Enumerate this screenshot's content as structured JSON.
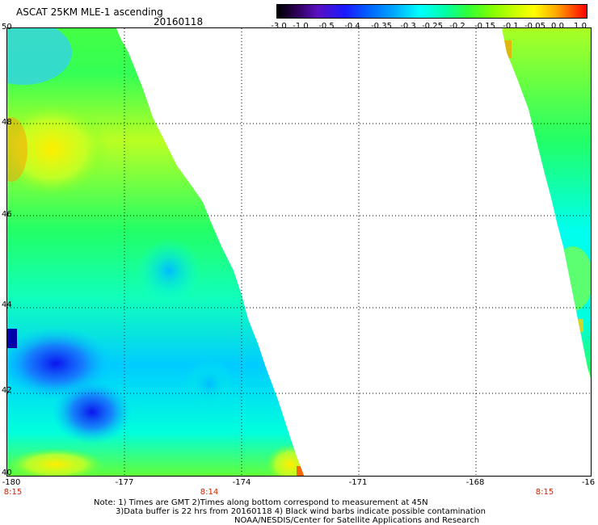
{
  "header": {
    "title": "ASCAT 25KM MLE-1 ascending",
    "date": "20160118"
  },
  "colorbar": {
    "ticks": [
      "-3.0",
      "-1.0",
      "-0.5",
      "-0.4",
      "-0.35",
      "-0.3",
      "-0.25",
      "-0.2",
      "-0.15",
      "-0.1",
      "-0.05",
      "0.0",
      "1.0"
    ],
    "colors": [
      "#000000",
      "#1a1aff",
      "#00ffff",
      "#33ff33",
      "#ffff00",
      "#ff0000"
    ]
  },
  "map": {
    "lat_labels": [
      "50",
      "48",
      "46",
      "44",
      "42",
      "40"
    ],
    "lon_labels": [
      "-180",
      "-177",
      "-174",
      "-171",
      "-168",
      "-16"
    ],
    "time_labels": [
      "8:15",
      "8:14",
      "8:15"
    ]
  },
  "notes": {
    "line1": "Note: 1) Times are GMT 2)Times along bottom correspond to measurement at 45N",
    "line2": "3)Data buffer is 22 hrs from 20160118 4) Black wind barbs indicate possible contamination",
    "line3": "NOAA/NESDIS/Center for Satellite Applications and Research"
  }
}
